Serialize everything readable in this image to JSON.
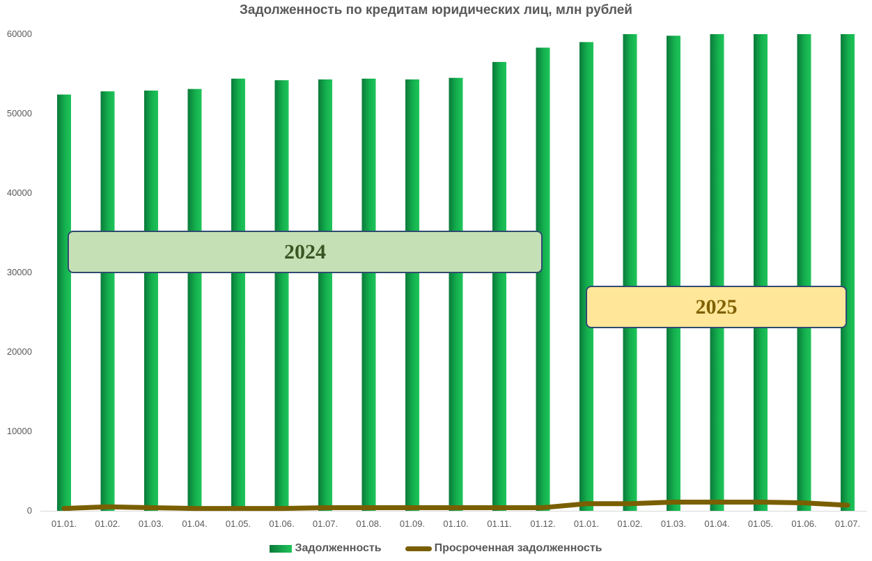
{
  "chart_data": {
    "type": "bar",
    "title": "Задолженность по кредитам юридических лиц, млн рублей",
    "categories": [
      "01.01.",
      "01.02.",
      "01.03.",
      "01.04.",
      "01.05.",
      "01.06.",
      "01.07.",
      "01.08.",
      "01.09.",
      "01.10.",
      "01.11.",
      "01.12.",
      "01.01.",
      "01.02.",
      "01.03.",
      "01.04.",
      "01.05.",
      "01.06.",
      "01.07."
    ],
    "series": [
      {
        "name": "Задолженность",
        "kind": "bar",
        "color": "#0fa84a",
        "values": [
          52400,
          52800,
          52900,
          53100,
          54400,
          54200,
          54300,
          54400,
          54300,
          54500,
          56500,
          58300,
          59000,
          60200,
          59800,
          60300,
          60500,
          60500,
          60300
        ]
      },
      {
        "name": "Просроченная задолженность",
        "kind": "line",
        "color": "#7a5f00",
        "values": [
          300,
          500,
          400,
          300,
          300,
          300,
          400,
          400,
          400,
          400,
          400,
          400,
          900,
          900,
          1100,
          1100,
          1100,
          1000,
          700
        ]
      }
    ],
    "ylim": [
      0,
      60000
    ],
    "yticks": [
      0,
      10000,
      20000,
      30000,
      40000,
      50000,
      60000
    ],
    "grid": false,
    "legend_position": "bottom",
    "annotations": [
      {
        "text": "2024",
        "color": "#c5e0b4"
      },
      {
        "text": "2025",
        "color": "#ffe699"
      }
    ]
  }
}
